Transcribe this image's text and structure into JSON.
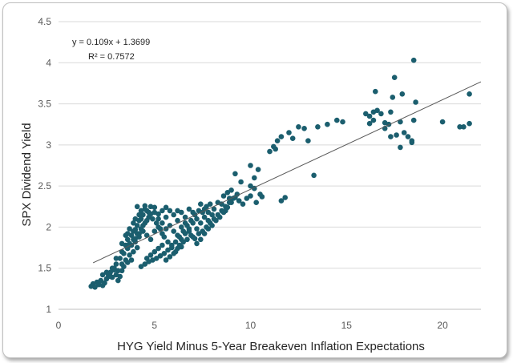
{
  "chart_data": {
    "type": "scatter",
    "title": "",
    "xlabel": "HYG Yield Minus 5-Year Breakeven Inflation Expectations",
    "ylabel": "SPX Dividend Yield",
    "xlim": [
      0,
      22
    ],
    "ylim": [
      1,
      4.5
    ],
    "xticks": [
      "0",
      "5",
      "10",
      "15",
      "20"
    ],
    "yticks": [
      "1",
      "1.5",
      "2",
      "2.5",
      "3",
      "3.5",
      "4",
      "4.5"
    ],
    "grid": "horizontal",
    "marker_color": "#1b5e6e",
    "trendline": {
      "type": "linear",
      "slope": 0.109,
      "intercept": 1.3699,
      "x_range": [
        1.8,
        22
      ],
      "equation": "y = 0.109x + 1.3699",
      "r_squared": "R² = 0.7572",
      "color": "#595959"
    },
    "points": [
      [
        1.7,
        1.28
      ],
      [
        1.8,
        1.31
      ],
      [
        1.9,
        1.27
      ],
      [
        2.0,
        1.33
      ],
      [
        2.1,
        1.3
      ],
      [
        2.2,
        1.35
      ],
      [
        2.3,
        1.29
      ],
      [
        2.4,
        1.32
      ],
      [
        2.5,
        1.37
      ],
      [
        2.6,
        1.41
      ],
      [
        2.7,
        1.45
      ],
      [
        2.8,
        1.39
      ],
      [
        2.9,
        1.48
      ],
      [
        3.0,
        1.42
      ],
      [
        3.1,
        1.35
      ],
      [
        3.2,
        1.4
      ],
      [
        3.3,
        1.47
      ],
      [
        3.4,
        1.52
      ],
      [
        3.6,
        1.57
      ],
      [
        3.8,
        1.6
      ],
      [
        2.8,
        1.5
      ],
      [
        3.0,
        1.55
      ],
      [
        3.2,
        1.62
      ],
      [
        3.4,
        1.68
      ],
      [
        3.6,
        1.74
      ],
      [
        3.7,
        1.8
      ],
      [
        3.9,
        1.85
      ],
      [
        4.1,
        1.92
      ],
      [
        4.3,
        1.98
      ],
      [
        4.5,
        2.05
      ],
      [
        4.7,
        2.12
      ],
      [
        3.5,
        1.78
      ],
      [
        3.8,
        1.9
      ],
      [
        4.0,
        1.97
      ],
      [
        4.2,
        2.08
      ],
      [
        4.4,
        2.15
      ],
      [
        4.6,
        2.2
      ],
      [
        4.8,
        2.25
      ],
      [
        5.0,
        2.18
      ],
      [
        5.2,
        2.1
      ],
      [
        5.4,
        2.05
      ],
      [
        5.6,
        2.12
      ],
      [
        5.8,
        2.2
      ],
      [
        6.0,
        2.15
      ],
      [
        6.2,
        2.08
      ],
      [
        6.4,
        2.0
      ],
      [
        6.6,
        2.12
      ],
      [
        6.8,
        2.22
      ],
      [
        7.0,
        2.18
      ],
      [
        7.2,
        2.1
      ],
      [
        4.0,
        1.82
      ],
      [
        4.2,
        1.88
      ],
      [
        4.4,
        1.95
      ],
      [
        4.6,
        1.9
      ],
      [
        4.8,
        1.85
      ],
      [
        5.0,
        1.95
      ],
      [
        5.2,
        2.0
      ],
      [
        5.4,
        1.92
      ],
      [
        5.6,
        1.98
      ],
      [
        5.8,
        2.02
      ],
      [
        6.0,
        1.95
      ],
      [
        6.2,
        1.9
      ],
      [
        6.4,
        1.85
      ],
      [
        6.6,
        1.92
      ],
      [
        6.8,
        1.98
      ],
      [
        7.0,
        2.05
      ],
      [
        7.2,
        1.98
      ],
      [
        7.4,
        2.05
      ],
      [
        7.6,
        2.12
      ],
      [
        7.8,
        2.08
      ],
      [
        4.3,
        1.52
      ],
      [
        4.5,
        1.55
      ],
      [
        4.7,
        1.58
      ],
      [
        4.9,
        1.6
      ],
      [
        5.1,
        1.62
      ],
      [
        5.3,
        1.65
      ],
      [
        5.5,
        1.68
      ],
      [
        5.7,
        1.72
      ],
      [
        5.9,
        1.75
      ],
      [
        6.1,
        1.7
      ],
      [
        6.3,
        1.78
      ],
      [
        6.5,
        1.82
      ],
      [
        6.7,
        1.85
      ],
      [
        6.9,
        1.9
      ],
      [
        7.1,
        1.86
      ],
      [
        7.3,
        1.92
      ],
      [
        7.5,
        1.95
      ],
      [
        7.7,
        2.0
      ],
      [
        7.9,
        2.05
      ],
      [
        8.1,
        2.1
      ],
      [
        8.3,
        2.15
      ],
      [
        8.5,
        2.2
      ],
      [
        8.7,
        2.25
      ],
      [
        8.9,
        2.3
      ],
      [
        9.1,
        2.35
      ],
      [
        9.3,
        2.4
      ],
      [
        8.6,
        2.38
      ],
      [
        8.8,
        2.42
      ],
      [
        9.0,
        2.45
      ],
      [
        9.4,
        2.32
      ],
      [
        9.6,
        2.28
      ],
      [
        9.8,
        2.35
      ],
      [
        10.0,
        2.5
      ],
      [
        10.2,
        2.6
      ],
      [
        10.4,
        2.7
      ],
      [
        10.0,
        2.75
      ],
      [
        9.5,
        2.55
      ],
      [
        9.2,
        2.65
      ],
      [
        10.5,
        2.4
      ],
      [
        10.3,
        2.3
      ],
      [
        11.0,
        2.92
      ],
      [
        11.2,
        2.98
      ],
      [
        11.4,
        3.05
      ],
      [
        11.6,
        3.1
      ],
      [
        11.3,
        2.95
      ],
      [
        12.0,
        3.15
      ],
      [
        12.2,
        3.08
      ],
      [
        12.5,
        3.22
      ],
      [
        12.8,
        3.2
      ],
      [
        13.0,
        3.05
      ],
      [
        13.5,
        3.22
      ],
      [
        14.0,
        3.25
      ],
      [
        14.5,
        3.3
      ],
      [
        14.8,
        3.28
      ],
      [
        11.8,
        2.36
      ],
      [
        11.6,
        2.32
      ],
      [
        10.6,
        2.37
      ],
      [
        13.3,
        2.63
      ],
      [
        10.2,
        2.47
      ],
      [
        10.0,
        2.38
      ],
      [
        16.0,
        3.38
      ],
      [
        16.2,
        3.35
      ],
      [
        16.4,
        3.3
      ],
      [
        16.6,
        3.42
      ],
      [
        16.5,
        3.65
      ],
      [
        16.8,
        3.38
      ],
      [
        17.0,
        3.2
      ],
      [
        17.2,
        3.25
      ],
      [
        17.3,
        3.4
      ],
      [
        17.5,
        3.82
      ],
      [
        17.6,
        3.12
      ],
      [
        17.8,
        3.28
      ],
      [
        18.0,
        3.15
      ],
      [
        18.2,
        3.1
      ],
      [
        18.4,
        3.05
      ],
      [
        18.5,
        3.3
      ],
      [
        18.6,
        3.52
      ],
      [
        18.5,
        4.03
      ],
      [
        17.9,
        3.62
      ],
      [
        17.4,
        3.58
      ],
      [
        17.0,
        3.27
      ],
      [
        17.3,
        3.1
      ],
      [
        17.8,
        2.97
      ],
      [
        18.4,
        3.03
      ],
      [
        16.4,
        3.4
      ],
      [
        16.2,
        3.26
      ],
      [
        20.0,
        3.28
      ],
      [
        20.9,
        3.22
      ],
      [
        21.1,
        3.22
      ],
      [
        21.4,
        3.26
      ],
      [
        21.4,
        3.62
      ],
      [
        3.0,
        1.62
      ],
      [
        3.3,
        1.7
      ],
      [
        3.6,
        1.85
      ],
      [
        3.9,
        1.95
      ],
      [
        4.1,
        2.02
      ],
      [
        4.3,
        2.1
      ],
      [
        4.5,
        2.22
      ],
      [
        4.7,
        2.18
      ],
      [
        4.9,
        2.1
      ],
      [
        5.1,
        2.05
      ],
      [
        5.3,
        1.98
      ],
      [
        5.5,
        1.88
      ],
      [
        5.7,
        1.82
      ],
      [
        5.9,
        1.78
      ],
      [
        6.1,
        1.82
      ],
      [
        6.3,
        1.88
      ],
      [
        6.5,
        1.95
      ],
      [
        6.7,
        2.02
      ],
      [
        6.9,
        2.08
      ],
      [
        7.1,
        2.15
      ],
      [
        7.3,
        2.2
      ],
      [
        7.5,
        2.18
      ],
      [
        7.7,
        2.25
      ],
      [
        7.9,
        2.28
      ],
      [
        8.1,
        2.22
      ],
      [
        8.3,
        2.3
      ],
      [
        8.5,
        2.28
      ],
      [
        8.7,
        2.2
      ],
      [
        8.9,
        2.35
      ],
      [
        2.3,
        1.42
      ],
      [
        2.5,
        1.45
      ],
      [
        2.7,
        1.4
      ],
      [
        2.9,
        1.5
      ],
      [
        3.1,
        1.47
      ],
      [
        3.3,
        1.55
      ],
      [
        3.5,
        1.6
      ],
      [
        3.7,
        1.66
      ],
      [
        3.9,
        1.7
      ],
      [
        4.1,
        1.75
      ],
      [
        4.6,
        1.62
      ],
      [
        4.8,
        1.66
      ],
      [
        5.0,
        1.7
      ],
      [
        5.2,
        1.74
      ],
      [
        5.4,
        1.78
      ],
      [
        5.6,
        1.6
      ],
      [
        5.8,
        1.64
      ],
      [
        6.0,
        1.68
      ],
      [
        6.2,
        1.74
      ],
      [
        6.4,
        1.76
      ],
      [
        3.8,
        1.78
      ],
      [
        4.0,
        1.86
      ],
      [
        4.2,
        1.92
      ],
      [
        4.4,
        2.02
      ],
      [
        4.6,
        2.08
      ],
      [
        4.8,
        2.16
      ],
      [
        5.0,
        2.24
      ],
      [
        5.2,
        2.16
      ],
      [
        5.4,
        2.2
      ],
      [
        5.6,
        2.24
      ],
      [
        4.1,
        2.25
      ],
      [
        4.3,
        2.2
      ],
      [
        4.5,
        2.26
      ],
      [
        4.2,
        2.15
      ],
      [
        3.9,
        2.05
      ],
      [
        3.7,
        1.98
      ],
      [
        3.5,
        1.9
      ],
      [
        3.3,
        1.8
      ],
      [
        3.6,
        1.92
      ],
      [
        4.0,
        2.1
      ],
      [
        7.4,
        2.28
      ],
      [
        7.6,
        2.22
      ],
      [
        7.8,
        2.18
      ],
      [
        8.0,
        2.15
      ],
      [
        8.2,
        2.08
      ],
      [
        8.4,
        2.12
      ],
      [
        8.6,
        2.18
      ],
      [
        8.8,
        2.24
      ],
      [
        9.0,
        2.3
      ],
      [
        9.2,
        2.36
      ],
      [
        6.2,
        2.2
      ],
      [
        6.4,
        2.18
      ],
      [
        6.6,
        2.05
      ],
      [
        6.8,
        1.95
      ],
      [
        7.0,
        1.88
      ],
      [
        7.2,
        1.8
      ],
      [
        7.4,
        1.85
      ],
      [
        7.6,
        1.92
      ],
      [
        7.8,
        1.98
      ],
      [
        8.0,
        2.02
      ]
    ]
  }
}
